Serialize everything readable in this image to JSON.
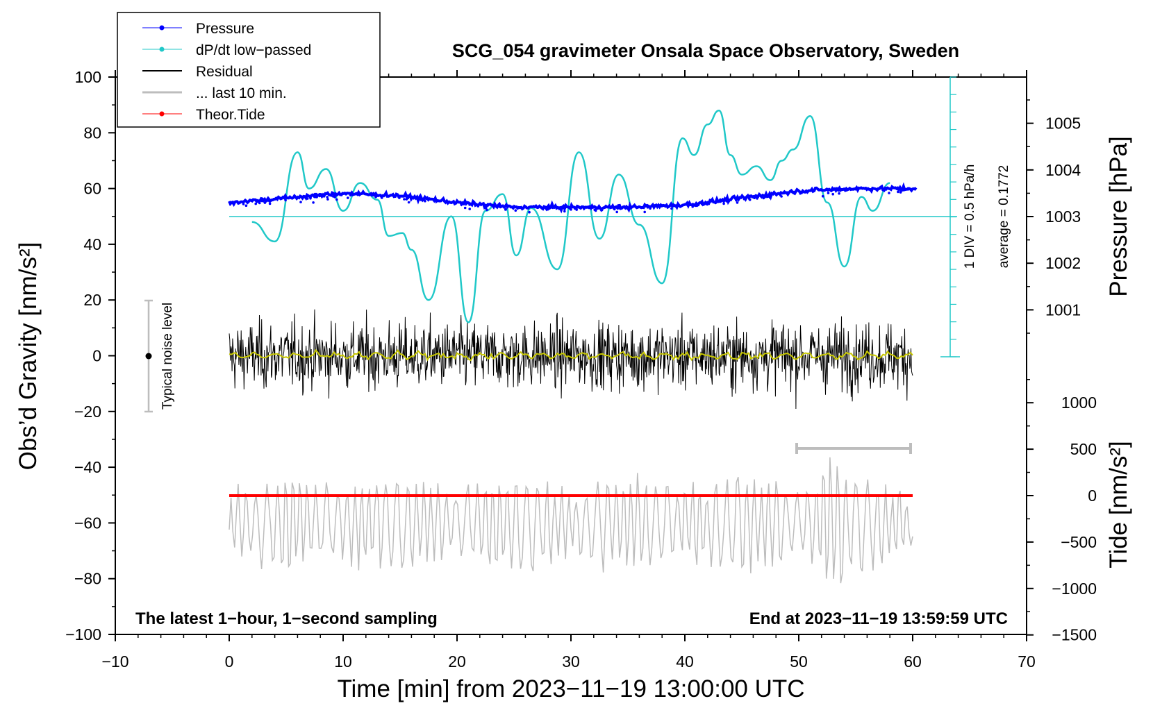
{
  "chart_data": {
    "type": "line",
    "title": "SCG_054 gravimeter Onsala Space Observatory, Sweden",
    "xlabel": "Time [min] from 2023−11−19 13:00:00 UTC",
    "ylabel_left": "Obs’d Gravity [nm/s²]",
    "ylabel_pressure": "Pressure [hPa]",
    "ylabel_tide": "Tide [nm/s²]",
    "xlim": [
      -10,
      70
    ],
    "ylim": [
      -100,
      100
    ],
    "x_ticks": [
      "−10",
      "0",
      "10",
      "20",
      "30",
      "40",
      "50",
      "60",
      "70"
    ],
    "y_ticks": [
      "100",
      "80",
      "60",
      "40",
      "20",
      "0",
      "−20",
      "−40",
      "−60",
      "−80",
      "−100"
    ],
    "pressure_ticks": [
      "1005",
      "1004",
      "1003",
      "1002",
      "1001"
    ],
    "tide_ticks": [
      "1000",
      "500",
      "0",
      "−500",
      "−1000",
      "−1500"
    ],
    "pressure_range_hpa": [
      1000,
      1006
    ],
    "tide_range": [
      -1500,
      1500
    ],
    "legend": [
      {
        "label": "Pressure",
        "color": "#0000ff"
      },
      {
        "label": "dP/dt low−passed",
        "color": "#20c8c8"
      },
      {
        "label": "Residual",
        "color": "#000000"
      },
      {
        "label": "... last 10 min.",
        "color": "#bdbdbd"
      },
      {
        "label": "Theor.Tide",
        "color": "#ff0000"
      }
    ],
    "noise_label": "Typical noise level",
    "noise_bar": [
      -20,
      20
    ],
    "scale_label_1": "1 DIV = 0.5 hPa/h",
    "scale_label_2": "average = 0.1772",
    "bottom_left_note": "The latest 1−hour, 1−second sampling",
    "bottom_right_note": "End at 2023−11−19 13:59:59 UTC",
    "last10_bar_min": [
      50,
      60
    ],
    "series": [
      {
        "name": "Pressure",
        "color": "#0000ff",
        "x": [
          0,
          5,
          10,
          15,
          20,
          25,
          30,
          35,
          40,
          45,
          50,
          55,
          60
        ],
        "values": [
          1003.3,
          1003.4,
          1003.5,
          1003.45,
          1003.3,
          1003.2,
          1003.2,
          1003.2,
          1003.25,
          1003.4,
          1003.55,
          1003.6,
          1003.6
        ]
      },
      {
        "name": "dP/dt low-passed",
        "color": "#20c8c8",
        "x": [
          2,
          4,
          6,
          7,
          8.5,
          10,
          11.5,
          13,
          14,
          15.2,
          16,
          17.5,
          19.5,
          21,
          22.5,
          24,
          25.2,
          26.5,
          28.8,
          30.7,
          32.5,
          34.2,
          36,
          38,
          39.8,
          40.8,
          42,
          43,
          44,
          45,
          46.3,
          47.5,
          48.5,
          49.5,
          51,
          52.5,
          54,
          55.5,
          56.5,
          58
        ],
        "values": [
          48,
          41,
          73,
          60,
          67,
          52,
          62,
          56,
          43,
          44,
          38,
          20,
          50,
          12,
          52,
          58,
          36,
          53,
          31,
          73,
          42,
          65,
          47,
          26,
          78,
          72,
          83,
          88,
          72,
          65,
          68,
          63,
          70,
          74,
          86,
          55,
          32,
          57,
          52,
          62
        ]
      },
      {
        "name": "Residual",
        "color": "#000000",
        "x": [
          0,
          60
        ],
        "values": [
          0,
          0
        ]
      },
      {
        "name": "... last 10 min.",
        "color": "#bdbdbd",
        "x": [
          0,
          60
        ],
        "values": [
          -60,
          -60
        ]
      },
      {
        "name": "Theor.Tide",
        "color": "#ff0000",
        "x": [
          0,
          60
        ],
        "values": [
          0,
          0
        ]
      }
    ]
  }
}
